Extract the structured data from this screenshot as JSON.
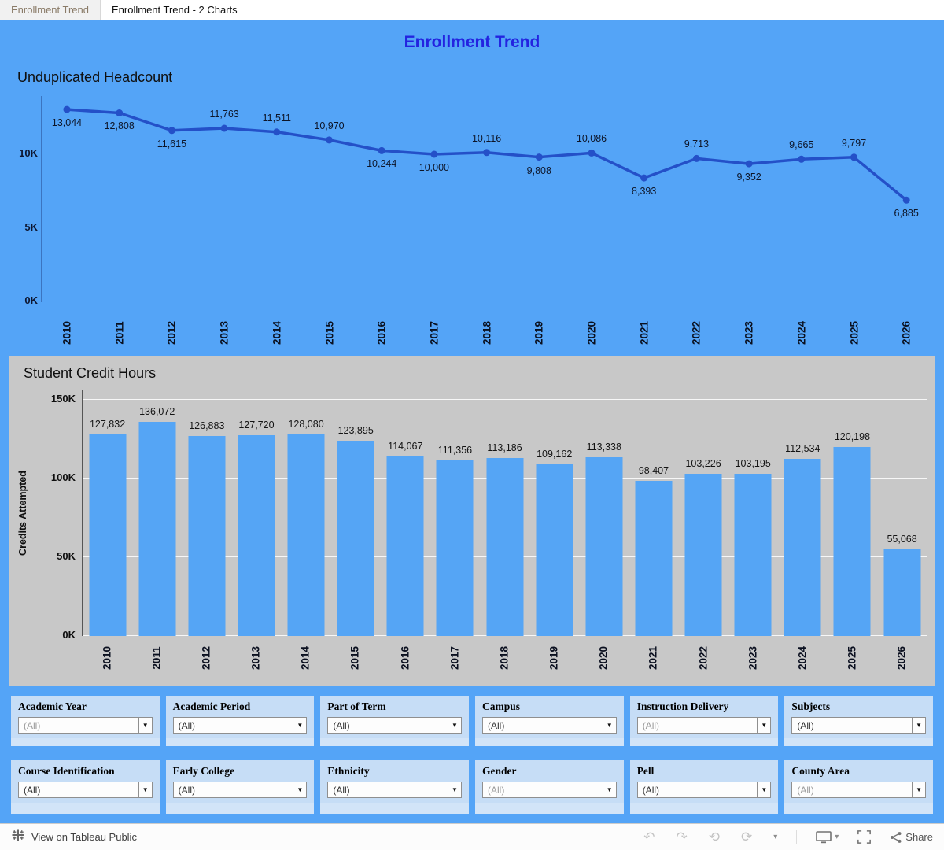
{
  "tabs": [
    {
      "label": "Enrollment Trend",
      "active": false
    },
    {
      "label": "Enrollment Trend - 2 Charts",
      "active": true
    }
  ],
  "dashboard": {
    "title": "Enrollment Trend",
    "colors": {
      "background": "#54a4f7",
      "line": "#2450c8",
      "bar": "#55a5f5",
      "panel_gray": "#c8c8c8",
      "title_blue": "#2323e0",
      "filter_bg": "#c6ddf6"
    }
  },
  "chart_data": [
    {
      "type": "line",
      "title": "Unduplicated Headcount",
      "x": [
        2010,
        2011,
        2012,
        2013,
        2014,
        2015,
        2016,
        2017,
        2018,
        2019,
        2020,
        2021,
        2022,
        2023,
        2024,
        2025,
        2026
      ],
      "values": [
        13044,
        12808,
        11615,
        11763,
        11511,
        10970,
        10244,
        10000,
        10116,
        9808,
        10086,
        8393,
        9713,
        9352,
        9665,
        9797,
        6885
      ],
      "labels": [
        "13,044",
        "12,808",
        "11,615",
        "11,763",
        "11,511",
        "10,970",
        "10,244",
        "10,000",
        "10,116",
        "9,808",
        "10,086",
        "8,393",
        "9,713",
        "9,352",
        "9,665",
        "9,797",
        "6,885"
      ],
      "label_side": [
        "below",
        "below",
        "below",
        "above",
        "above",
        "above",
        "below",
        "below",
        "above",
        "below",
        "above",
        "below",
        "above",
        "below",
        "above",
        "above",
        "below"
      ],
      "yticks": [
        {
          "label": "10K",
          "value": 10000
        },
        {
          "label": "5K",
          "value": 5000
        },
        {
          "label": "0K",
          "value": 0
        }
      ],
      "ylim": [
        0,
        14000
      ],
      "xlabel": "",
      "ylabel": "",
      "grid": false,
      "legend": "none"
    },
    {
      "type": "bar",
      "title": "Student Credit Hours",
      "ylabel": "Credits Attempted",
      "xlabel": "",
      "categories": [
        2010,
        2011,
        2012,
        2013,
        2014,
        2015,
        2016,
        2017,
        2018,
        2019,
        2020,
        2021,
        2022,
        2023,
        2024,
        2025,
        2026
      ],
      "values": [
        127832,
        136072,
        126883,
        127720,
        128080,
        123895,
        114067,
        111356,
        113186,
        109162,
        113338,
        98407,
        103226,
        103195,
        112534,
        120198,
        55068
      ],
      "labels": [
        "127,832",
        "136,072",
        "126,883",
        "127,720",
        "128,080",
        "123,895",
        "114,067",
        "111,356",
        "113,186",
        "109,162",
        "113,338",
        "98,407",
        "103,226",
        "103,195",
        "112,534",
        "120,198",
        "55,068"
      ],
      "yticks": [
        {
          "label": "150K",
          "value": 150000
        },
        {
          "label": "100K",
          "value": 100000
        },
        {
          "label": "50K",
          "value": 50000
        },
        {
          "label": "0K",
          "value": 0
        }
      ],
      "ylim": [
        0,
        156000
      ],
      "grid": true,
      "legend": "none"
    }
  ],
  "filters": {
    "row1": [
      {
        "label": "Academic Year",
        "value": "(All)",
        "muted": true
      },
      {
        "label": "Academic Period",
        "value": "(All)",
        "muted": false
      },
      {
        "label": "Part of Term",
        "value": "(All)",
        "muted": false
      },
      {
        "label": "Campus",
        "value": "(All)",
        "muted": false
      },
      {
        "label": "Instruction Delivery",
        "value": "(All)",
        "muted": true
      },
      {
        "label": "Subjects",
        "value": "(All)",
        "muted": false
      }
    ],
    "row2": [
      {
        "label": "Course Identification",
        "value": "(All)",
        "muted": false
      },
      {
        "label": "Early College",
        "value": "(All)",
        "muted": false
      },
      {
        "label": "Ethnicity",
        "value": "(All)",
        "muted": false
      },
      {
        "label": "Gender",
        "value": "(All)",
        "muted": true
      },
      {
        "label": "Pell",
        "value": "(All)",
        "muted": false
      },
      {
        "label": "County Area",
        "value": "(All)",
        "muted": true
      }
    ]
  },
  "toolbar": {
    "view_text": "View on Tableau Public",
    "share_label": "Share"
  }
}
